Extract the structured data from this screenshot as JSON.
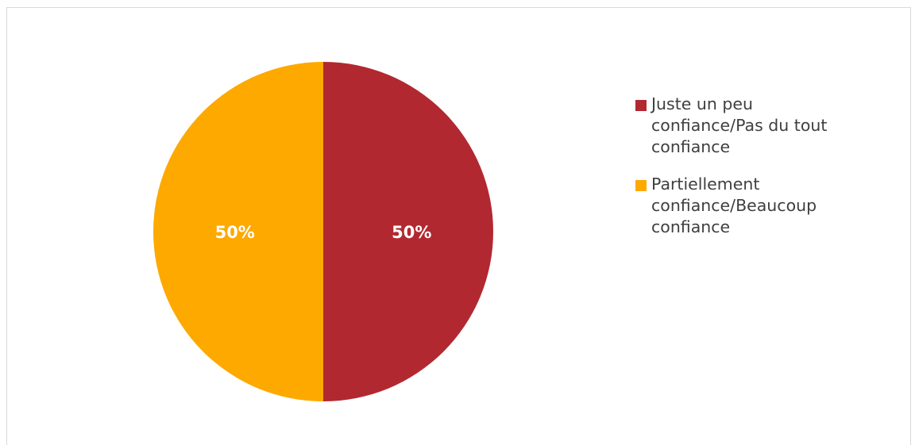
{
  "chart_data": {
    "type": "pie",
    "slices": [
      {
        "name": "Juste un peu confiance/Pas du tout confiance",
        "value": 50,
        "label": "50%",
        "color": "#b22830"
      },
      {
        "name": "Partiellement confiance/Beaucoup confiance",
        "value": 50,
        "label": "50%",
        "color": "#fda900"
      }
    ],
    "legend_position": "right",
    "legend": [
      {
        "lines": [
          "Juste un peu",
          "confiance/Pas du tout",
          "confiance"
        ],
        "color": "#b22830"
      },
      {
        "lines": [
          "Partiellement",
          "confiance/Beaucoup",
          "confiance"
        ],
        "color": "#fda900"
      }
    ],
    "start_angle_deg": 0,
    "direction": "clockwise"
  }
}
